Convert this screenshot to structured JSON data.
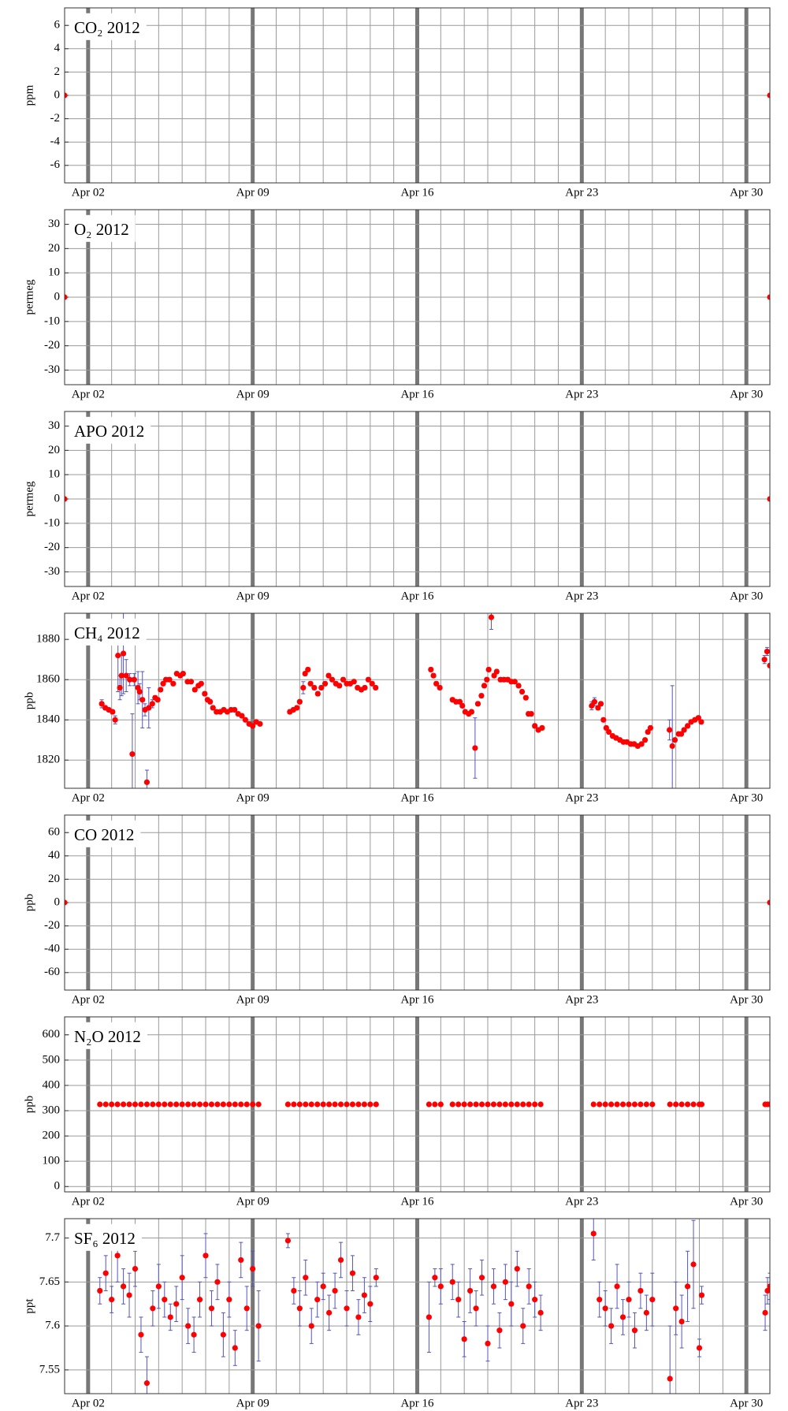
{
  "chart_data": [
    {
      "type": "scatter",
      "title": "CO₂ 2012",
      "ylabel": "ppm",
      "color": "#ff0000",
      "grid": true,
      "x": [
        1,
        31
      ],
      "values": [
        0,
        0
      ],
      "xlim": [
        1,
        31
      ],
      "xticks": [
        {
          "value": 2,
          "label": "Apr 02"
        },
        {
          "value": 9,
          "label": "Apr 09"
        },
        {
          "value": 16,
          "label": "Apr 16"
        },
        {
          "value": 23,
          "label": "Apr 23"
        },
        {
          "value": 30,
          "label": "Apr 30"
        }
      ],
      "ylim": [
        -7.5,
        7.5
      ],
      "yticks": [
        -6,
        -4,
        -2,
        0,
        2,
        4,
        6
      ]
    },
    {
      "type": "scatter",
      "title": "O₂ 2012",
      "ylabel": "permeg",
      "color": "#ff0000",
      "grid": true,
      "x": [
        1,
        31
      ],
      "values": [
        0,
        0
      ],
      "xlim": [
        1,
        31
      ],
      "xticks": [
        {
          "value": 2,
          "label": "Apr 02"
        },
        {
          "value": 9,
          "label": "Apr 09"
        },
        {
          "value": 16,
          "label": "Apr 16"
        },
        {
          "value": 23,
          "label": "Apr 23"
        },
        {
          "value": 30,
          "label": "Apr 30"
        }
      ],
      "ylim": [
        -36,
        36
      ],
      "yticks": [
        -30,
        -20,
        -10,
        0,
        10,
        20,
        30
      ]
    },
    {
      "type": "scatter",
      "title": "APO 2012",
      "ylabel": "permeg",
      "color": "#ff0000",
      "grid": true,
      "x": [
        1,
        31
      ],
      "values": [
        0,
        0
      ],
      "xlim": [
        1,
        31
      ],
      "xticks": [
        {
          "value": 2,
          "label": "Apr 02"
        },
        {
          "value": 9,
          "label": "Apr 09"
        },
        {
          "value": 16,
          "label": "Apr 16"
        },
        {
          "value": 23,
          "label": "Apr 23"
        },
        {
          "value": 30,
          "label": "Apr 30"
        }
      ],
      "ylim": [
        -36,
        36
      ],
      "yticks": [
        -30,
        -20,
        -10,
        0,
        10,
        20,
        30
      ]
    },
    {
      "type": "scatter",
      "title": "CH₄ 2012",
      "ylabel": "ppb",
      "color": "#ff0000",
      "error_color": "#5555bb",
      "grid": true,
      "x": [
        2.58,
        2.73,
        2.88,
        3.04,
        3.15,
        3.27,
        3.35,
        3.42,
        3.5,
        3.62,
        3.77,
        3.88,
        3.96,
        4.12,
        4.19,
        4.31,
        4.42,
        4.5,
        4.58,
        4.73,
        4.85,
        4.96,
        5.08,
        5.19,
        5.31,
        5.46,
        5.62,
        5.77,
        5.92,
        6.04,
        6.23,
        6.38,
        6.54,
        6.69,
        6.81,
        6.96,
        7.08,
        7.19,
        7.31,
        7.46,
        7.62,
        7.77,
        7.92,
        8.08,
        8.23,
        8.38,
        8.54,
        8.69,
        8.85,
        9.0,
        9.15,
        9.31,
        10.58,
        10.73,
        10.88,
        11.0,
        11.15,
        11.23,
        11.35,
        11.46,
        11.62,
        11.77,
        11.92,
        12.08,
        12.23,
        12.38,
        12.54,
        12.69,
        12.85,
        13.0,
        13.15,
        13.31,
        13.46,
        13.62,
        13.77,
        13.92,
        14.08,
        14.23,
        16.58,
        16.69,
        16.81,
        16.96,
        17.5,
        17.65,
        17.81,
        17.92,
        18.04,
        18.19,
        18.31,
        18.46,
        18.58,
        18.73,
        18.85,
        18.96,
        19.04,
        19.15,
        19.27,
        19.38,
        19.54,
        19.69,
        19.85,
        20.0,
        20.15,
        20.31,
        20.46,
        20.62,
        20.73,
        20.85,
        21.0,
        21.15,
        21.31,
        23.42,
        23.54,
        23.69,
        23.81,
        23.92,
        24.04,
        24.15,
        24.31,
        24.46,
        24.62,
        24.77,
        24.92,
        25.08,
        25.23,
        25.38,
        25.54,
        25.69,
        25.81,
        25.92,
        26.73,
        26.85,
        26.96,
        27.12,
        27.23,
        27.35,
        27.5,
        27.65,
        27.81,
        27.96,
        28.08,
        30.77,
        30.88,
        31.0
      ],
      "values": [
        1848,
        1846,
        1845,
        1844,
        1840,
        1872,
        1856,
        1862,
        1873,
        1862,
        1860,
        1823,
        1860,
        1856,
        1854,
        1850,
        1845,
        1809,
        1846,
        1848,
        1851,
        1850,
        1855,
        1858,
        1860,
        1860,
        1858,
        1863,
        1862,
        1863,
        1859,
        1859,
        1855,
        1857,
        1858,
        1853,
        1850,
        1849,
        1846,
        1844,
        1844,
        1845,
        1844,
        1845,
        1845,
        1843,
        1842,
        1840,
        1838,
        1837,
        1839,
        1838,
        1844,
        1845,
        1846,
        1849,
        1856,
        1863,
        1865,
        1858,
        1856,
        1853,
        1856,
        1858,
        1862,
        1860,
        1858,
        1857,
        1860,
        1858,
        1858,
        1859,
        1856,
        1855,
        1856,
        1860,
        1858,
        1856,
        1865,
        1862,
        1858,
        1856,
        1850,
        1849,
        1849,
        1847,
        1844,
        1843,
        1844,
        1826,
        1848,
        1852,
        1857,
        1860,
        1865,
        1891,
        1862,
        1864,
        1860,
        1860,
        1860,
        1859,
        1859,
        1857,
        1854,
        1851,
        1843,
        1843,
        1837,
        1835,
        1836,
        1847,
        1849,
        1846,
        1848,
        1840,
        1836,
        1834,
        1832,
        1831,
        1830,
        1829,
        1829,
        1828,
        1828,
        1827,
        1828,
        1830,
        1834,
        1836,
        1835,
        1827,
        1830,
        1833,
        1833,
        1835,
        1837,
        1839,
        1840,
        1841,
        1839,
        1870,
        1874,
        1867
      ],
      "errors": [
        2,
        1,
        1,
        1,
        2,
        18,
        6,
        10,
        20,
        8,
        3,
        20,
        3,
        8,
        4,
        14,
        3,
        6,
        10,
        2,
        1,
        1,
        1,
        1,
        1,
        1,
        1,
        1,
        1,
        1,
        1,
        1,
        1,
        1,
        1,
        1,
        1,
        1,
        1,
        1,
        1,
        1,
        1,
        1,
        1,
        1,
        1,
        1,
        1,
        1,
        1,
        1,
        1,
        1,
        1,
        1,
        3,
        1,
        1,
        1,
        1,
        1,
        1,
        1,
        1,
        1,
        1,
        1,
        1,
        1,
        1,
        1,
        1,
        1,
        1,
        1,
        1,
        1,
        1,
        1,
        1,
        1,
        1,
        1,
        1,
        1,
        1,
        1,
        1,
        15,
        1,
        1,
        1,
        1,
        1,
        6,
        1,
        1,
        1,
        1,
        1,
        1,
        1,
        1,
        1,
        1,
        1,
        1,
        1,
        1,
        1,
        2,
        2,
        1,
        1,
        1,
        1,
        1,
        1,
        1,
        1,
        1,
        1,
        1,
        1,
        1,
        1,
        1,
        1,
        1,
        5,
        30,
        1,
        1,
        1,
        1,
        1,
        1,
        1,
        1,
        1,
        2,
        2,
        1
      ],
      "xlim": [
        1,
        31
      ],
      "xticks": [
        {
          "value": 2,
          "label": "Apr 02"
        },
        {
          "value": 9,
          "label": "Apr 09"
        },
        {
          "value": 16,
          "label": "Apr 16"
        },
        {
          "value": 23,
          "label": "Apr 23"
        },
        {
          "value": 30,
          "label": "Apr 30"
        }
      ],
      "ylim": [
        1806,
        1893
      ],
      "yticks": [
        1820,
        1840,
        1860,
        1880
      ]
    },
    {
      "type": "scatter",
      "title": "CO 2012",
      "ylabel": "ppb",
      "color": "#ff0000",
      "grid": true,
      "x": [
        1,
        31
      ],
      "values": [
        0,
        0
      ],
      "xlim": [
        1,
        31
      ],
      "xticks": [
        {
          "value": 2,
          "label": "Apr 02"
        },
        {
          "value": 9,
          "label": "Apr 09"
        },
        {
          "value": 16,
          "label": "Apr 16"
        },
        {
          "value": 23,
          "label": "Apr 23"
        },
        {
          "value": 30,
          "label": "Apr 30"
        }
      ],
      "ylim": [
        -75,
        75
      ],
      "yticks": [
        -60,
        -40,
        -20,
        0,
        20,
        40,
        60
      ]
    },
    {
      "type": "scatter",
      "title": "N₂O 2012",
      "ylabel": "ppb",
      "color": "#ff0000",
      "grid": true,
      "x": [
        2.5,
        2.75,
        3.0,
        3.25,
        3.5,
        3.75,
        4.0,
        4.25,
        4.5,
        4.75,
        5.0,
        5.25,
        5.5,
        5.75,
        6.0,
        6.25,
        6.5,
        6.75,
        7.0,
        7.25,
        7.5,
        7.75,
        8.0,
        8.25,
        8.5,
        8.75,
        9.0,
        9.25,
        10.5,
        10.75,
        11.0,
        11.25,
        11.5,
        11.75,
        12.0,
        12.25,
        12.5,
        12.75,
        13.0,
        13.25,
        13.5,
        13.75,
        14.0,
        14.25,
        16.5,
        16.75,
        17.0,
        17.5,
        17.75,
        18.0,
        18.25,
        18.5,
        18.75,
        19.0,
        19.25,
        19.5,
        19.75,
        20.0,
        20.25,
        20.5,
        20.75,
        21.0,
        21.25,
        23.5,
        23.75,
        24.0,
        24.25,
        24.5,
        24.75,
        25.0,
        25.25,
        25.5,
        25.75,
        26.0,
        26.75,
        27.0,
        27.25,
        27.5,
        27.75,
        28.0,
        28.1,
        30.8,
        30.9,
        31.0
      ],
      "values": [
        325,
        325,
        325,
        325,
        325,
        325,
        325,
        325,
        325,
        325,
        325,
        325,
        325,
        325,
        325,
        325,
        325,
        325,
        325,
        325,
        325,
        325,
        325,
        325,
        325,
        325,
        325,
        325,
        325,
        325,
        325,
        325,
        325,
        325,
        325,
        325,
        325,
        325,
        325,
        325,
        325,
        325,
        325,
        325,
        325,
        325,
        325,
        325,
        325,
        325,
        325,
        325,
        325,
        325,
        325,
        325,
        325,
        325,
        325,
        325,
        325,
        325,
        325,
        325,
        325,
        325,
        325,
        325,
        325,
        325,
        325,
        325,
        325,
        325,
        325,
        325,
        325,
        325,
        325,
        325,
        325,
        325,
        325,
        325
      ],
      "xlim": [
        1,
        31
      ],
      "xticks": [
        {
          "value": 2,
          "label": "Apr 02"
        },
        {
          "value": 9,
          "label": "Apr 09"
        },
        {
          "value": 16,
          "label": "Apr 16"
        },
        {
          "value": 23,
          "label": "Apr 23"
        },
        {
          "value": 30,
          "label": "Apr 30"
        }
      ],
      "ylim": [
        -21,
        671
      ],
      "yticks": [
        0,
        100,
        200,
        300,
        400,
        500,
        600
      ]
    },
    {
      "type": "scatter",
      "title": "SF₆ 2012",
      "ylabel": "ppt",
      "color": "#ff0000",
      "error_color": "#5555bb",
      "grid": true,
      "x": [
        2.5,
        2.75,
        3.0,
        3.25,
        3.5,
        3.75,
        4.0,
        4.25,
        4.5,
        4.75,
        5.0,
        5.25,
        5.5,
        5.75,
        6.0,
        6.25,
        6.5,
        6.75,
        7.0,
        7.25,
        7.5,
        7.75,
        8.0,
        8.25,
        8.5,
        8.75,
        9.0,
        9.25,
        10.5,
        10.75,
        11.0,
        11.25,
        11.5,
        11.75,
        12.0,
        12.25,
        12.5,
        12.75,
        13.0,
        13.25,
        13.5,
        13.75,
        14.0,
        14.25,
        16.5,
        16.75,
        17.0,
        17.5,
        17.75,
        18.0,
        18.25,
        18.5,
        18.75,
        19.0,
        19.25,
        19.5,
        19.75,
        20.0,
        20.25,
        20.5,
        20.75,
        21.0,
        21.25,
        23.5,
        23.75,
        24.0,
        24.25,
        24.5,
        24.75,
        25.0,
        25.25,
        25.5,
        25.75,
        26.0,
        26.75,
        27.0,
        27.25,
        27.5,
        27.75,
        28.0,
        28.1,
        30.8,
        30.9,
        31.0
      ],
      "values": [
        7.64,
        7.66,
        7.63,
        7.68,
        7.645,
        7.635,
        7.665,
        7.59,
        7.535,
        7.62,
        7.645,
        7.63,
        7.61,
        7.625,
        7.655,
        7.6,
        7.59,
        7.63,
        7.68,
        7.62,
        7.65,
        7.59,
        7.63,
        7.575,
        7.675,
        7.62,
        7.665,
        7.6,
        7.697,
        7.64,
        7.62,
        7.655,
        7.6,
        7.63,
        7.645,
        7.615,
        7.64,
        7.675,
        7.62,
        7.66,
        7.61,
        7.635,
        7.625,
        7.655,
        7.61,
        7.655,
        7.645,
        7.65,
        7.63,
        7.585,
        7.64,
        7.62,
        7.655,
        7.58,
        7.645,
        7.595,
        7.65,
        7.625,
        7.665,
        7.6,
        7.645,
        7.63,
        7.615,
        7.705,
        7.63,
        7.62,
        7.6,
        7.645,
        7.61,
        7.63,
        7.595,
        7.64,
        7.615,
        7.63,
        7.54,
        7.62,
        7.605,
        7.645,
        7.67,
        7.575,
        7.635,
        7.615,
        7.64,
        7.645
      ],
      "errors": [
        0.015,
        0.02,
        0.015,
        0.03,
        0.02,
        0.025,
        0.02,
        0.02,
        0.03,
        0.02,
        0.025,
        0.02,
        0.015,
        0.02,
        0.025,
        0.02,
        0.02,
        0.02,
        0.025,
        0.02,
        0.02,
        0.025,
        0.02,
        0.02,
        0.02,
        0.025,
        0.02,
        0.04,
        0.008,
        0.015,
        0.02,
        0.02,
        0.02,
        0.02,
        0.015,
        0.02,
        0.02,
        0.02,
        0.02,
        0.02,
        0.02,
        0.02,
        0.02,
        0.01,
        0.04,
        0.01,
        0.02,
        0.02,
        0.02,
        0.02,
        0.025,
        0.02,
        0.02,
        0.02,
        0.02,
        0.02,
        0.02,
        0.025,
        0.02,
        0.02,
        0.02,
        0.02,
        0.02,
        0.03,
        0.02,
        0.02,
        0.02,
        0.025,
        0.02,
        0.02,
        0.02,
        0.02,
        0.02,
        0.03,
        0.06,
        0.03,
        0.03,
        0.04,
        0.05,
        0.01,
        0.01,
        0.02,
        0.015,
        0.015
      ],
      "xlim": [
        1,
        31
      ],
      "xticks": [
        {
          "value": 2,
          "label": "Apr 02"
        },
        {
          "value": 9,
          "label": "Apr 09"
        },
        {
          "value": 16,
          "label": "Apr 16"
        },
        {
          "value": 23,
          "label": "Apr 23"
        },
        {
          "value": 30,
          "label": "Apr 30"
        }
      ],
      "ylim": [
        7.523,
        7.722
      ],
      "yticks": [
        7.55,
        7.6,
        7.65,
        7.7
      ]
    }
  ]
}
